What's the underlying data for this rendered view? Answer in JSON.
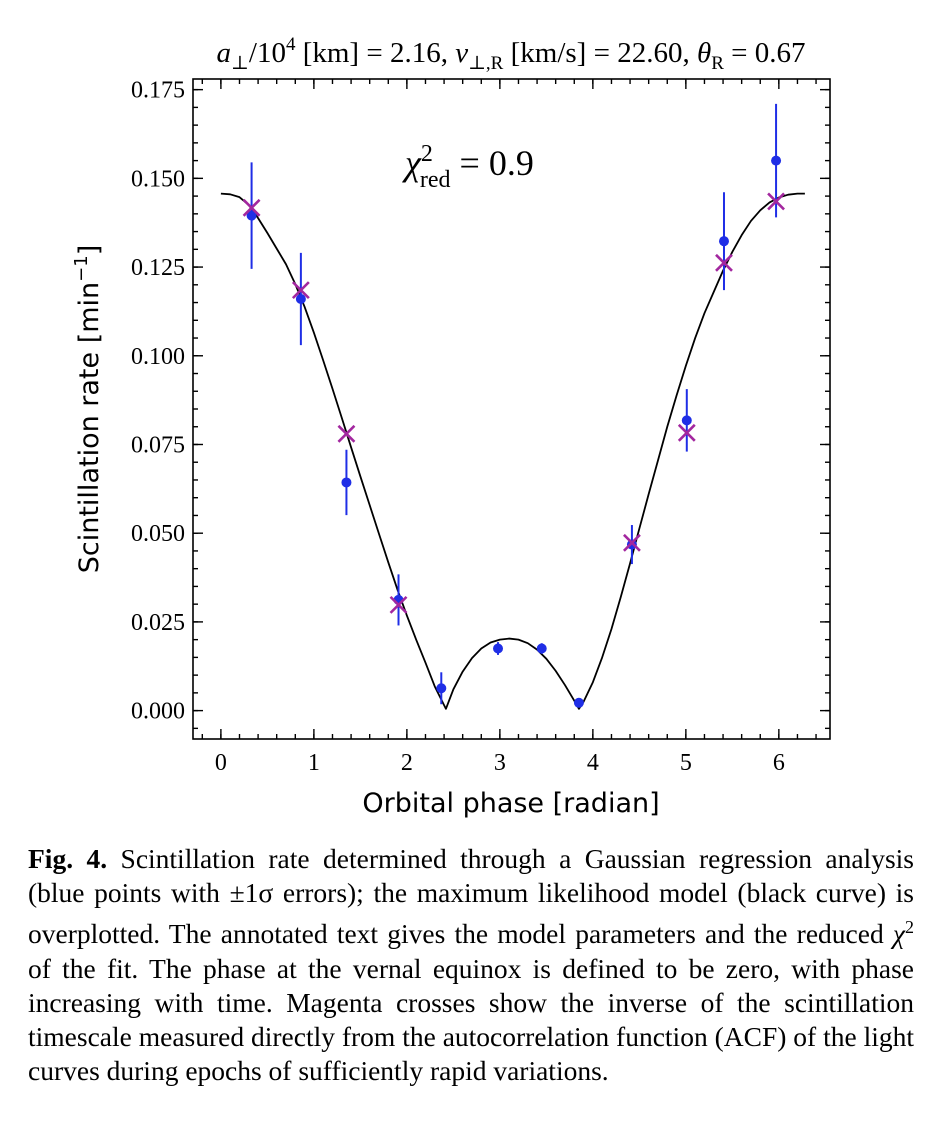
{
  "chart_data": {
    "type": "scatter",
    "title_parts": {
      "a_sym": "a",
      "a_sub": "⊥",
      "a_div": "/10",
      "a_exp": "4",
      "a_unit": " [km] = ",
      "a_val": "2.16",
      "sep1": ", ",
      "v_sym": "v",
      "v_sub": "⊥,R",
      "v_unit": " [km/s] = ",
      "v_val": "22.60",
      "sep2": ", ",
      "t_sym": "θ",
      "t_sub": "R",
      "t_eq": " = ",
      "t_val": "0.67"
    },
    "annotation": {
      "sym": "χ",
      "sup": "2",
      "sub": "red",
      "eq": " = ",
      "val": "0.9"
    },
    "xlabel": "Orbital phase [radian]",
    "ylabel_text": "Scintillation rate [min",
    "ylabel_exp": "−1",
    "ylabel_close": "]",
    "xlim": [
      -0.3,
      6.55
    ],
    "ylim": [
      -0.008,
      0.178
    ],
    "xticks": [
      {
        "value": 0,
        "label": "0"
      },
      {
        "value": 1,
        "label": "1"
      },
      {
        "value": 2,
        "label": "2"
      },
      {
        "value": 3,
        "label": "3"
      },
      {
        "value": 4,
        "label": "4"
      },
      {
        "value": 5,
        "label": "5"
      },
      {
        "value": 6,
        "label": "6"
      }
    ],
    "yticks": [
      {
        "value": 0.0,
        "label": "0.000"
      },
      {
        "value": 0.025,
        "label": "0.025"
      },
      {
        "value": 0.05,
        "label": "0.050"
      },
      {
        "value": 0.075,
        "label": "0.075"
      },
      {
        "value": 0.1,
        "label": "0.100"
      },
      {
        "value": 0.125,
        "label": "0.125"
      },
      {
        "value": 0.15,
        "label": "0.150"
      },
      {
        "value": 0.175,
        "label": "0.175"
      }
    ],
    "x_minor_step": 0.2,
    "y_minor_step": 0.005,
    "grid": false,
    "series": [
      {
        "kind": "errorbar_points",
        "color": "#1f2ee6",
        "points": [
          {
            "x": 0.33,
            "y": 0.1395,
            "err": 0.015
          },
          {
            "x": 0.86,
            "y": 0.116,
            "err": 0.013
          },
          {
            "x": 1.35,
            "y": 0.0643,
            "err": 0.0092
          },
          {
            "x": 1.91,
            "y": 0.0312,
            "err": 0.0072
          },
          {
            "x": 2.37,
            "y": 0.0063,
            "err": 0.0045
          },
          {
            "x": 2.98,
            "y": 0.0175,
            "err": 0.0018
          },
          {
            "x": 3.45,
            "y": 0.0175,
            "err": 0.0015
          },
          {
            "x": 3.85,
            "y": 0.0022,
            "err": 0.0008
          },
          {
            "x": 4.42,
            "y": 0.0468,
            "err": 0.0055
          },
          {
            "x": 5.01,
            "y": 0.0818,
            "err": 0.0088
          },
          {
            "x": 5.41,
            "y": 0.1323,
            "err": 0.0138
          },
          {
            "x": 5.97,
            "y": 0.155,
            "err": 0.016
          }
        ]
      },
      {
        "kind": "crosses",
        "color": "#a3279f",
        "points": [
          {
            "x": 0.33,
            "y": 0.1417
          },
          {
            "x": 0.86,
            "y": 0.1185
          },
          {
            "x": 1.35,
            "y": 0.078
          },
          {
            "x": 1.91,
            "y": 0.0298
          },
          {
            "x": 4.42,
            "y": 0.0473
          },
          {
            "x": 5.01,
            "y": 0.0783
          },
          {
            "x": 5.41,
            "y": 0.1262
          },
          {
            "x": 5.97,
            "y": 0.1435
          }
        ]
      },
      {
        "kind": "model_curve",
        "color": "#000000",
        "points": [
          [
            0.0,
            0.1457
          ],
          [
            0.1,
            0.1455
          ],
          [
            0.2,
            0.1447
          ],
          [
            0.3,
            0.1425
          ],
          [
            0.4,
            0.1388
          ],
          [
            0.5,
            0.1346
          ],
          [
            0.6,
            0.1302
          ],
          [
            0.7,
            0.1258
          ],
          [
            0.8,
            0.1202
          ],
          [
            0.9,
            0.1138
          ],
          [
            1.0,
            0.1065
          ],
          [
            1.1,
            0.0987
          ],
          [
            1.2,
            0.0907
          ],
          [
            1.3,
            0.0825
          ],
          [
            1.4,
            0.0742
          ],
          [
            1.5,
            0.066
          ],
          [
            1.6,
            0.0579
          ],
          [
            1.7,
            0.0498
          ],
          [
            1.8,
            0.0418
          ],
          [
            1.9,
            0.034
          ],
          [
            2.0,
            0.0268
          ],
          [
            2.1,
            0.02
          ],
          [
            2.2,
            0.0135
          ],
          [
            2.3,
            0.0068
          ],
          [
            2.42,
            0.0005
          ],
          [
            2.5,
            0.006
          ],
          [
            2.6,
            0.011
          ],
          [
            2.7,
            0.0148
          ],
          [
            2.8,
            0.0175
          ],
          [
            2.9,
            0.0192
          ],
          [
            3.0,
            0.02
          ],
          [
            3.1,
            0.0203
          ],
          [
            3.2,
            0.02
          ],
          [
            3.3,
            0.019
          ],
          [
            3.4,
            0.0172
          ],
          [
            3.5,
            0.0146
          ],
          [
            3.6,
            0.0112
          ],
          [
            3.7,
            0.0072
          ],
          [
            3.8,
            0.0028
          ],
          [
            3.85,
            0.0005
          ],
          [
            3.9,
            0.0025
          ],
          [
            4.0,
            0.008
          ],
          [
            4.1,
            0.015
          ],
          [
            4.2,
            0.023
          ],
          [
            4.3,
            0.032
          ],
          [
            4.4,
            0.0415
          ],
          [
            4.5,
            0.0513
          ],
          [
            4.6,
            0.061
          ],
          [
            4.7,
            0.0705
          ],
          [
            4.8,
            0.08
          ],
          [
            4.9,
            0.0888
          ],
          [
            5.0,
            0.0972
          ],
          [
            5.1,
            0.105
          ],
          [
            5.2,
            0.112
          ],
          [
            5.3,
            0.118
          ],
          [
            5.4,
            0.124
          ],
          [
            5.5,
            0.1293
          ],
          [
            5.6,
            0.134
          ],
          [
            5.7,
            0.138
          ],
          [
            5.8,
            0.141
          ],
          [
            5.9,
            0.1432
          ],
          [
            6.0,
            0.1446
          ],
          [
            6.1,
            0.1454
          ],
          [
            6.2,
            0.1457
          ],
          [
            6.28,
            0.1457
          ]
        ]
      }
    ]
  },
  "caption": {
    "label": "Fig. 4.",
    "text_before_chi": " Scintillation rate determined through a Gaussian regression analysis (blue points with ±1σ errors); the maximum likelihood model (black curve) is overplotted. The annotated text gives the model parameters and the reduced ",
    "chi_symbol": "χ",
    "chi_sup": "2",
    "text_after_chi": " of the fit. The phase at the vernal equinox is defined to be zero, with phase increasing with time. Magenta crosses show the inverse of the scintillation timescale measured directly from the autocorrelation function (ACF) of the light curves during epochs of sufficiently rapid variations."
  }
}
